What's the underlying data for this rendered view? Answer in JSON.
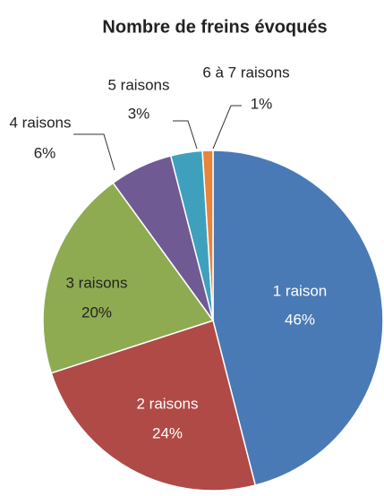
{
  "chart_data": {
    "type": "pie",
    "title": "Nombre de freins évoqués",
    "categories": [
      "1 raison",
      "2 raisons",
      "3 raisons",
      "4 raisons",
      "5 raisons",
      "6 à 7 raisons"
    ],
    "values": [
      46,
      24,
      20,
      6,
      3,
      1
    ],
    "value_labels": [
      "46%",
      "24%",
      "20%",
      "6%",
      "3%",
      "1%"
    ],
    "colors": [
      "#4a7ab5",
      "#b04a47",
      "#8fab52",
      "#6f5a94",
      "#3fa0bd",
      "#e9843a"
    ]
  }
}
